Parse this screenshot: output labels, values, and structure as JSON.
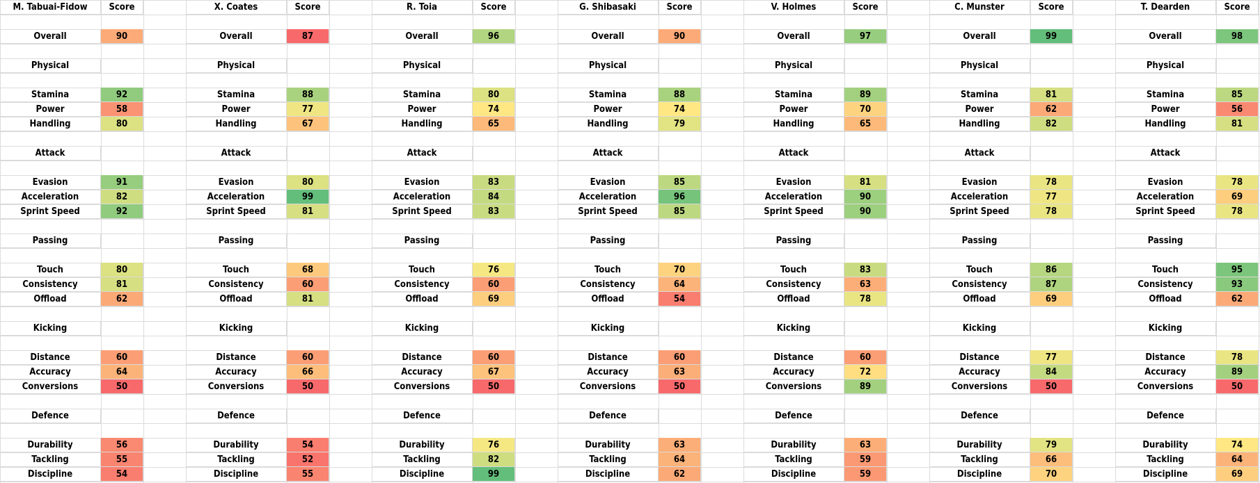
{
  "score_header": "Score",
  "section_names": [
    "Physical",
    "Attack",
    "Passing",
    "Kicking",
    "Defence"
  ],
  "overall_label": "Overall",
  "players": [
    {
      "name": "M. Tabuai-Fidow",
      "overall": 90,
      "sections": [
        {
          "title": "Physical",
          "stats": [
            {
              "label": "Stamina",
              "value": 92
            },
            {
              "label": "Power",
              "value": 58
            },
            {
              "label": "Handling",
              "value": 80
            }
          ]
        },
        {
          "title": "Attack",
          "stats": [
            {
              "label": "Evasion",
              "value": 91
            },
            {
              "label": "Acceleration",
              "value": 82
            },
            {
              "label": "Sprint Speed",
              "value": 92
            }
          ]
        },
        {
          "title": "Passing",
          "stats": [
            {
              "label": "Touch",
              "value": 80
            },
            {
              "label": "Consistency",
              "value": 81
            },
            {
              "label": "Offload",
              "value": 62
            }
          ]
        },
        {
          "title": "Kicking",
          "stats": [
            {
              "label": "Distance",
              "value": 60
            },
            {
              "label": "Accuracy",
              "value": 64
            },
            {
              "label": "Conversions",
              "value": 50
            }
          ]
        },
        {
          "title": "Defence",
          "stats": [
            {
              "label": "Durability",
              "value": 56
            },
            {
              "label": "Tackling",
              "value": 55
            },
            {
              "label": "Discipline",
              "value": 54
            }
          ]
        }
      ]
    },
    {
      "name": "X. Coates",
      "overall": 87,
      "sections": [
        {
          "title": "Physical",
          "stats": [
            {
              "label": "Stamina",
              "value": 88
            },
            {
              "label": "Power",
              "value": 77
            },
            {
              "label": "Handling",
              "value": 67
            }
          ]
        },
        {
          "title": "Attack",
          "stats": [
            {
              "label": "Evasion",
              "value": 80
            },
            {
              "label": "Acceleration",
              "value": 99
            },
            {
              "label": "Sprint Speed",
              "value": 81
            }
          ]
        },
        {
          "title": "Passing",
          "stats": [
            {
              "label": "Touch",
              "value": 68
            },
            {
              "label": "Consistency",
              "value": 60
            },
            {
              "label": "Offload",
              "value": 81
            }
          ]
        },
        {
          "title": "Kicking",
          "stats": [
            {
              "label": "Distance",
              "value": 60
            },
            {
              "label": "Accuracy",
              "value": 66
            },
            {
              "label": "Conversions",
              "value": 50
            }
          ]
        },
        {
          "title": "Defence",
          "stats": [
            {
              "label": "Durability",
              "value": 54
            },
            {
              "label": "Tackling",
              "value": 52
            },
            {
              "label": "Discipline",
              "value": 55
            }
          ]
        }
      ]
    },
    {
      "name": "R. Toia",
      "overall": 96,
      "sections": [
        {
          "title": "Physical",
          "stats": [
            {
              "label": "Stamina",
              "value": 80
            },
            {
              "label": "Power",
              "value": 74
            },
            {
              "label": "Handling",
              "value": 65
            }
          ]
        },
        {
          "title": "Attack",
          "stats": [
            {
              "label": "Evasion",
              "value": 83
            },
            {
              "label": "Acceleration",
              "value": 84
            },
            {
              "label": "Sprint Speed",
              "value": 83
            }
          ]
        },
        {
          "title": "Passing",
          "stats": [
            {
              "label": "Touch",
              "value": 76
            },
            {
              "label": "Consistency",
              "value": 60
            },
            {
              "label": "Offload",
              "value": 69
            }
          ]
        },
        {
          "title": "Kicking",
          "stats": [
            {
              "label": "Distance",
              "value": 60
            },
            {
              "label": "Accuracy",
              "value": 67
            },
            {
              "label": "Conversions",
              "value": 50
            }
          ]
        },
        {
          "title": "Defence",
          "stats": [
            {
              "label": "Durability",
              "value": 76
            },
            {
              "label": "Tackling",
              "value": 82
            },
            {
              "label": "Discipline",
              "value": 99
            }
          ]
        }
      ]
    },
    {
      "name": "G. Shibasaki",
      "overall": 90,
      "sections": [
        {
          "title": "Physical",
          "stats": [
            {
              "label": "Stamina",
              "value": 88
            },
            {
              "label": "Power",
              "value": 74
            },
            {
              "label": "Handling",
              "value": 79
            }
          ]
        },
        {
          "title": "Attack",
          "stats": [
            {
              "label": "Evasion",
              "value": 85
            },
            {
              "label": "Acceleration",
              "value": 96
            },
            {
              "label": "Sprint Speed",
              "value": 85
            }
          ]
        },
        {
          "title": "Passing",
          "stats": [
            {
              "label": "Touch",
              "value": 70
            },
            {
              "label": "Consistency",
              "value": 64
            },
            {
              "label": "Offload",
              "value": 54
            }
          ]
        },
        {
          "title": "Kicking",
          "stats": [
            {
              "label": "Distance",
              "value": 60
            },
            {
              "label": "Accuracy",
              "value": 63
            },
            {
              "label": "Conversions",
              "value": 50
            }
          ]
        },
        {
          "title": "Defence",
          "stats": [
            {
              "label": "Durability",
              "value": 63
            },
            {
              "label": "Tackling",
              "value": 64
            },
            {
              "label": "Discipline",
              "value": 62
            }
          ]
        }
      ]
    },
    {
      "name": "V. Holmes",
      "overall": 97,
      "sections": [
        {
          "title": "Physical",
          "stats": [
            {
              "label": "Stamina",
              "value": 89
            },
            {
              "label": "Power",
              "value": 70
            },
            {
              "label": "Handling",
              "value": 65
            }
          ]
        },
        {
          "title": "Attack",
          "stats": [
            {
              "label": "Evasion",
              "value": 81
            },
            {
              "label": "Acceleration",
              "value": 90
            },
            {
              "label": "Sprint Speed",
              "value": 90
            }
          ]
        },
        {
          "title": "Passing",
          "stats": [
            {
              "label": "Touch",
              "value": 83
            },
            {
              "label": "Consistency",
              "value": 63
            },
            {
              "label": "Offload",
              "value": 78
            }
          ]
        },
        {
          "title": "Kicking",
          "stats": [
            {
              "label": "Distance",
              "value": 60
            },
            {
              "label": "Accuracy",
              "value": 72
            },
            {
              "label": "Conversions",
              "value": 89
            }
          ]
        },
        {
          "title": "Defence",
          "stats": [
            {
              "label": "Durability",
              "value": 63
            },
            {
              "label": "Tackling",
              "value": 59
            },
            {
              "label": "Discipline",
              "value": 59
            }
          ]
        }
      ]
    },
    {
      "name": "C. Munster",
      "overall": 99,
      "sections": [
        {
          "title": "Physical",
          "stats": [
            {
              "label": "Stamina",
              "value": 81
            },
            {
              "label": "Power",
              "value": 62
            },
            {
              "label": "Handling",
              "value": 82
            }
          ]
        },
        {
          "title": "Attack",
          "stats": [
            {
              "label": "Evasion",
              "value": 78
            },
            {
              "label": "Acceleration",
              "value": 77
            },
            {
              "label": "Sprint Speed",
              "value": 78
            }
          ]
        },
        {
          "title": "Passing",
          "stats": [
            {
              "label": "Touch",
              "value": 86
            },
            {
              "label": "Consistency",
              "value": 87
            },
            {
              "label": "Offload",
              "value": 69
            }
          ]
        },
        {
          "title": "Kicking",
          "stats": [
            {
              "label": "Distance",
              "value": 77
            },
            {
              "label": "Accuracy",
              "value": 84
            },
            {
              "label": "Conversions",
              "value": 50
            }
          ]
        },
        {
          "title": "Defence",
          "stats": [
            {
              "label": "Durability",
              "value": 79
            },
            {
              "label": "Tackling",
              "value": 66
            },
            {
              "label": "Discipline",
              "value": 70
            }
          ]
        }
      ]
    },
    {
      "name": "T. Dearden",
      "overall": 98,
      "sections": [
        {
          "title": "Physical",
          "stats": [
            {
              "label": "Stamina",
              "value": 85
            },
            {
              "label": "Power",
              "value": 56
            },
            {
              "label": "Handling",
              "value": 81
            }
          ]
        },
        {
          "title": "Attack",
          "stats": [
            {
              "label": "Evasion",
              "value": 78
            },
            {
              "label": "Acceleration",
              "value": 69
            },
            {
              "label": "Sprint Speed",
              "value": 78
            }
          ]
        },
        {
          "title": "Passing",
          "stats": [
            {
              "label": "Touch",
              "value": 95
            },
            {
              "label": "Consistency",
              "value": 93
            },
            {
              "label": "Offload",
              "value": 62
            }
          ]
        },
        {
          "title": "Kicking",
          "stats": [
            {
              "label": "Distance",
              "value": 78
            },
            {
              "label": "Accuracy",
              "value": 89
            },
            {
              "label": "Conversions",
              "value": 50
            }
          ]
        },
        {
          "title": "Defence",
          "stats": [
            {
              "label": "Durability",
              "value": 74
            },
            {
              "label": "Tackling",
              "value": 64
            },
            {
              "label": "Discipline",
              "value": 69
            }
          ]
        }
      ]
    }
  ],
  "color_scale": {
    "low": "#f8696b",
    "mid": "#ffeb84",
    "high": "#63be7b"
  }
}
